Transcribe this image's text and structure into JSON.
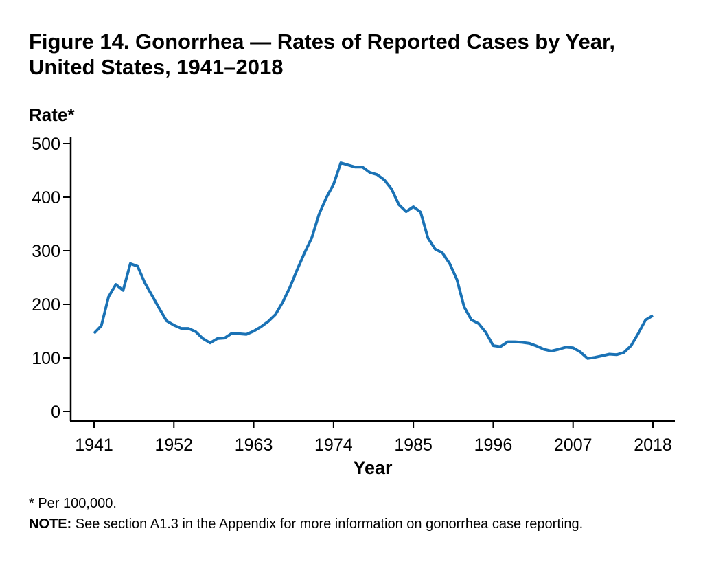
{
  "chart_data": {
    "type": "line",
    "title": "Figure 14. Gonorrhea — Rates of Reported Cases by Year, United States, 1941–2018",
    "xlabel": "Year",
    "ylabel": "Rate*",
    "ylim": [
      0,
      500
    ],
    "xlim": [
      1941,
      2018
    ],
    "grid": false,
    "legend": "none",
    "yticks": [
      0,
      100,
      200,
      300,
      400,
      500
    ],
    "xticks": [
      1941,
      1952,
      1963,
      1974,
      1985,
      1996,
      2007,
      2018
    ],
    "line_color": "#1a72b5",
    "series": [
      {
        "name": "Rate",
        "x": [
          1941,
          1942,
          1943,
          1944,
          1945,
          1946,
          1947,
          1948,
          1949,
          1950,
          1951,
          1952,
          1953,
          1954,
          1955,
          1956,
          1957,
          1958,
          1959,
          1960,
          1961,
          1962,
          1963,
          1964,
          1965,
          1966,
          1967,
          1968,
          1969,
          1970,
          1971,
          1972,
          1973,
          1974,
          1975,
          1976,
          1977,
          1978,
          1979,
          1980,
          1981,
          1982,
          1983,
          1984,
          1985,
          1986,
          1987,
          1988,
          1989,
          1990,
          1991,
          1992,
          1993,
          1994,
          1995,
          1996,
          1997,
          1998,
          1999,
          2000,
          2001,
          2002,
          2003,
          2004,
          2005,
          2006,
          2007,
          2008,
          2009,
          2010,
          2011,
          2012,
          2013,
          2014,
          2015,
          2016,
          2017,
          2018
        ],
        "values": [
          146,
          160,
          214,
          237,
          226,
          276,
          271,
          240,
          216,
          192,
          169,
          161,
          155,
          155,
          149,
          136,
          128,
          136,
          137,
          146,
          145,
          144,
          150,
          158,
          168,
          181,
          204,
          232,
          265,
          296,
          324,
          368,
          399,
          424,
          464,
          460,
          456,
          456,
          446,
          442,
          432,
          415,
          386,
          373,
          382,
          372,
          324,
          303,
          296,
          276,
          246,
          195,
          171,
          164,
          147,
          123,
          121,
          130,
          130,
          129,
          127,
          122,
          116,
          113,
          116,
          120,
          119,
          111,
          99,
          101,
          104,
          107,
          106,
          110,
          123,
          146,
          171,
          179
        ]
      }
    ]
  },
  "footnotes": {
    "per": "* Per 100,000.",
    "note_label": "NOTE:",
    "note_text": " See section A1.3 in the Appendix for more information on gonorrhea case reporting."
  }
}
